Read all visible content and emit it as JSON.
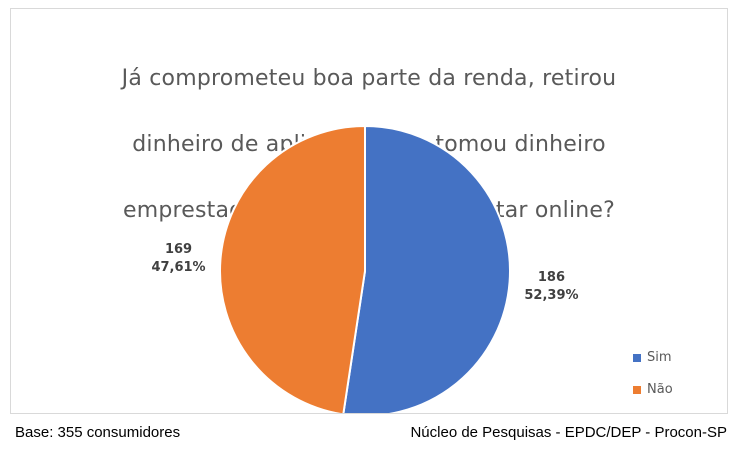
{
  "title_lines": [
    "Já comprometeu boa parte da renda, retirou",
    "dinheiro de aplicação e/ou tomou dinheiro",
    "emprestado para jogar e/ou apostar online?"
  ],
  "footer": {
    "base": "Base: 355 consumidores",
    "source": "Núcleo de Pesquisas - EPDC/DEP - Procon-SP"
  },
  "chart_data": {
    "type": "pie",
    "title": "Já comprometeu boa parte da renda, retirou dinheiro de aplicação e/ou tomou dinheiro emprestado para jogar e/ou apostar online?",
    "categories": [
      "Sim",
      "Não"
    ],
    "values": [
      186,
      169
    ],
    "percent_labels": [
      "52,39%",
      "47,61%"
    ],
    "colors": [
      "#4472c4",
      "#ed7d31"
    ],
    "legend": {
      "placement": "bottom-right",
      "entries": [
        "Sim",
        "Não"
      ]
    },
    "start_angle": "12 o'clock, clockwise"
  }
}
